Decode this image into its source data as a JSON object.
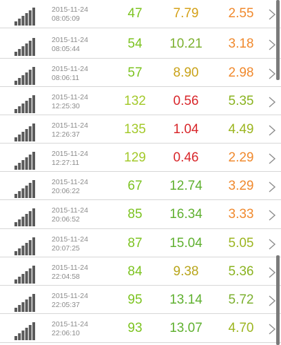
{
  "colors": {
    "ping_good": "#7cc320",
    "ping_fair": "#a3c92a",
    "green": "#5fb02f",
    "yellow_green": "#9cb51f",
    "olive": "#b8a51a",
    "orange": "#f0892d",
    "dark_orange": "#e8742a",
    "red": "#d8262a",
    "icon_gray": "#5a5a5a",
    "chevron_gray": "#8c8c8c"
  },
  "rows": [
    {
      "date": "2015-11-24",
      "time": "08:05:09",
      "ping": "47",
      "ping_color": "#7cc320",
      "download": "7.79",
      "download_color": "#d4a017",
      "upload": "2.55",
      "upload_color": "#f0892d"
    },
    {
      "date": "2015-11-24",
      "time": "08:05:44",
      "ping": "54",
      "ping_color": "#7cc320",
      "download": "10.21",
      "download_color": "#7cb02f",
      "upload": "3.18",
      "upload_color": "#f0892d"
    },
    {
      "date": "2015-11-24",
      "time": "08:06:11",
      "ping": "57",
      "ping_color": "#7cc320",
      "download": "8.90",
      "download_color": "#c9a218",
      "upload": "2.98",
      "upload_color": "#f0892d"
    },
    {
      "date": "2015-11-24",
      "time": "12:25:30",
      "ping": "132",
      "ping_color": "#a3c92a",
      "download": "0.56",
      "download_color": "#d8262a",
      "upload": "5.35",
      "upload_color": "#8ab31f"
    },
    {
      "date": "2015-11-24",
      "time": "12:26:37",
      "ping": "135",
      "ping_color": "#a3c92a",
      "download": "1.04",
      "download_color": "#d8262a",
      "upload": "4.49",
      "upload_color": "#9cb51f"
    },
    {
      "date": "2015-11-24",
      "time": "12:27:11",
      "ping": "129",
      "ping_color": "#a3c92a",
      "download": "0.46",
      "download_color": "#d8262a",
      "upload": "2.29",
      "upload_color": "#f0892d"
    },
    {
      "date": "2015-11-24",
      "time": "20:06:22",
      "ping": "67",
      "ping_color": "#7cc320",
      "download": "12.74",
      "download_color": "#5fb02f",
      "upload": "3.29",
      "upload_color": "#f0892d"
    },
    {
      "date": "2015-11-24",
      "time": "20:06:52",
      "ping": "85",
      "ping_color": "#7cc320",
      "download": "16.34",
      "download_color": "#5fb02f",
      "upload": "3.33",
      "upload_color": "#f0892d"
    },
    {
      "date": "2015-11-24",
      "time": "20:07:25",
      "ping": "87",
      "ping_color": "#7cc320",
      "download": "15.04",
      "download_color": "#5fb02f",
      "upload": "5.05",
      "upload_color": "#9cb51f"
    },
    {
      "date": "2015-11-24",
      "time": "22:04:58",
      "ping": "84",
      "ping_color": "#7cc320",
      "download": "9.38",
      "download_color": "#b8a51a",
      "upload": "5.36",
      "upload_color": "#8ab31f"
    },
    {
      "date": "2015-11-24",
      "time": "22:05:37",
      "ping": "95",
      "ping_color": "#7cc320",
      "download": "13.14",
      "download_color": "#5fb02f",
      "upload": "5.72",
      "upload_color": "#7cb02f"
    },
    {
      "date": "2015-11-24",
      "time": "22:06:10",
      "ping": "93",
      "ping_color": "#7cc320",
      "download": "13.07",
      "download_color": "#5fb02f",
      "upload": "4.70",
      "upload_color": "#9cb51f"
    }
  ],
  "icons": {
    "signal": "signal-bars-icon",
    "chevron": "chevron-right-icon"
  }
}
